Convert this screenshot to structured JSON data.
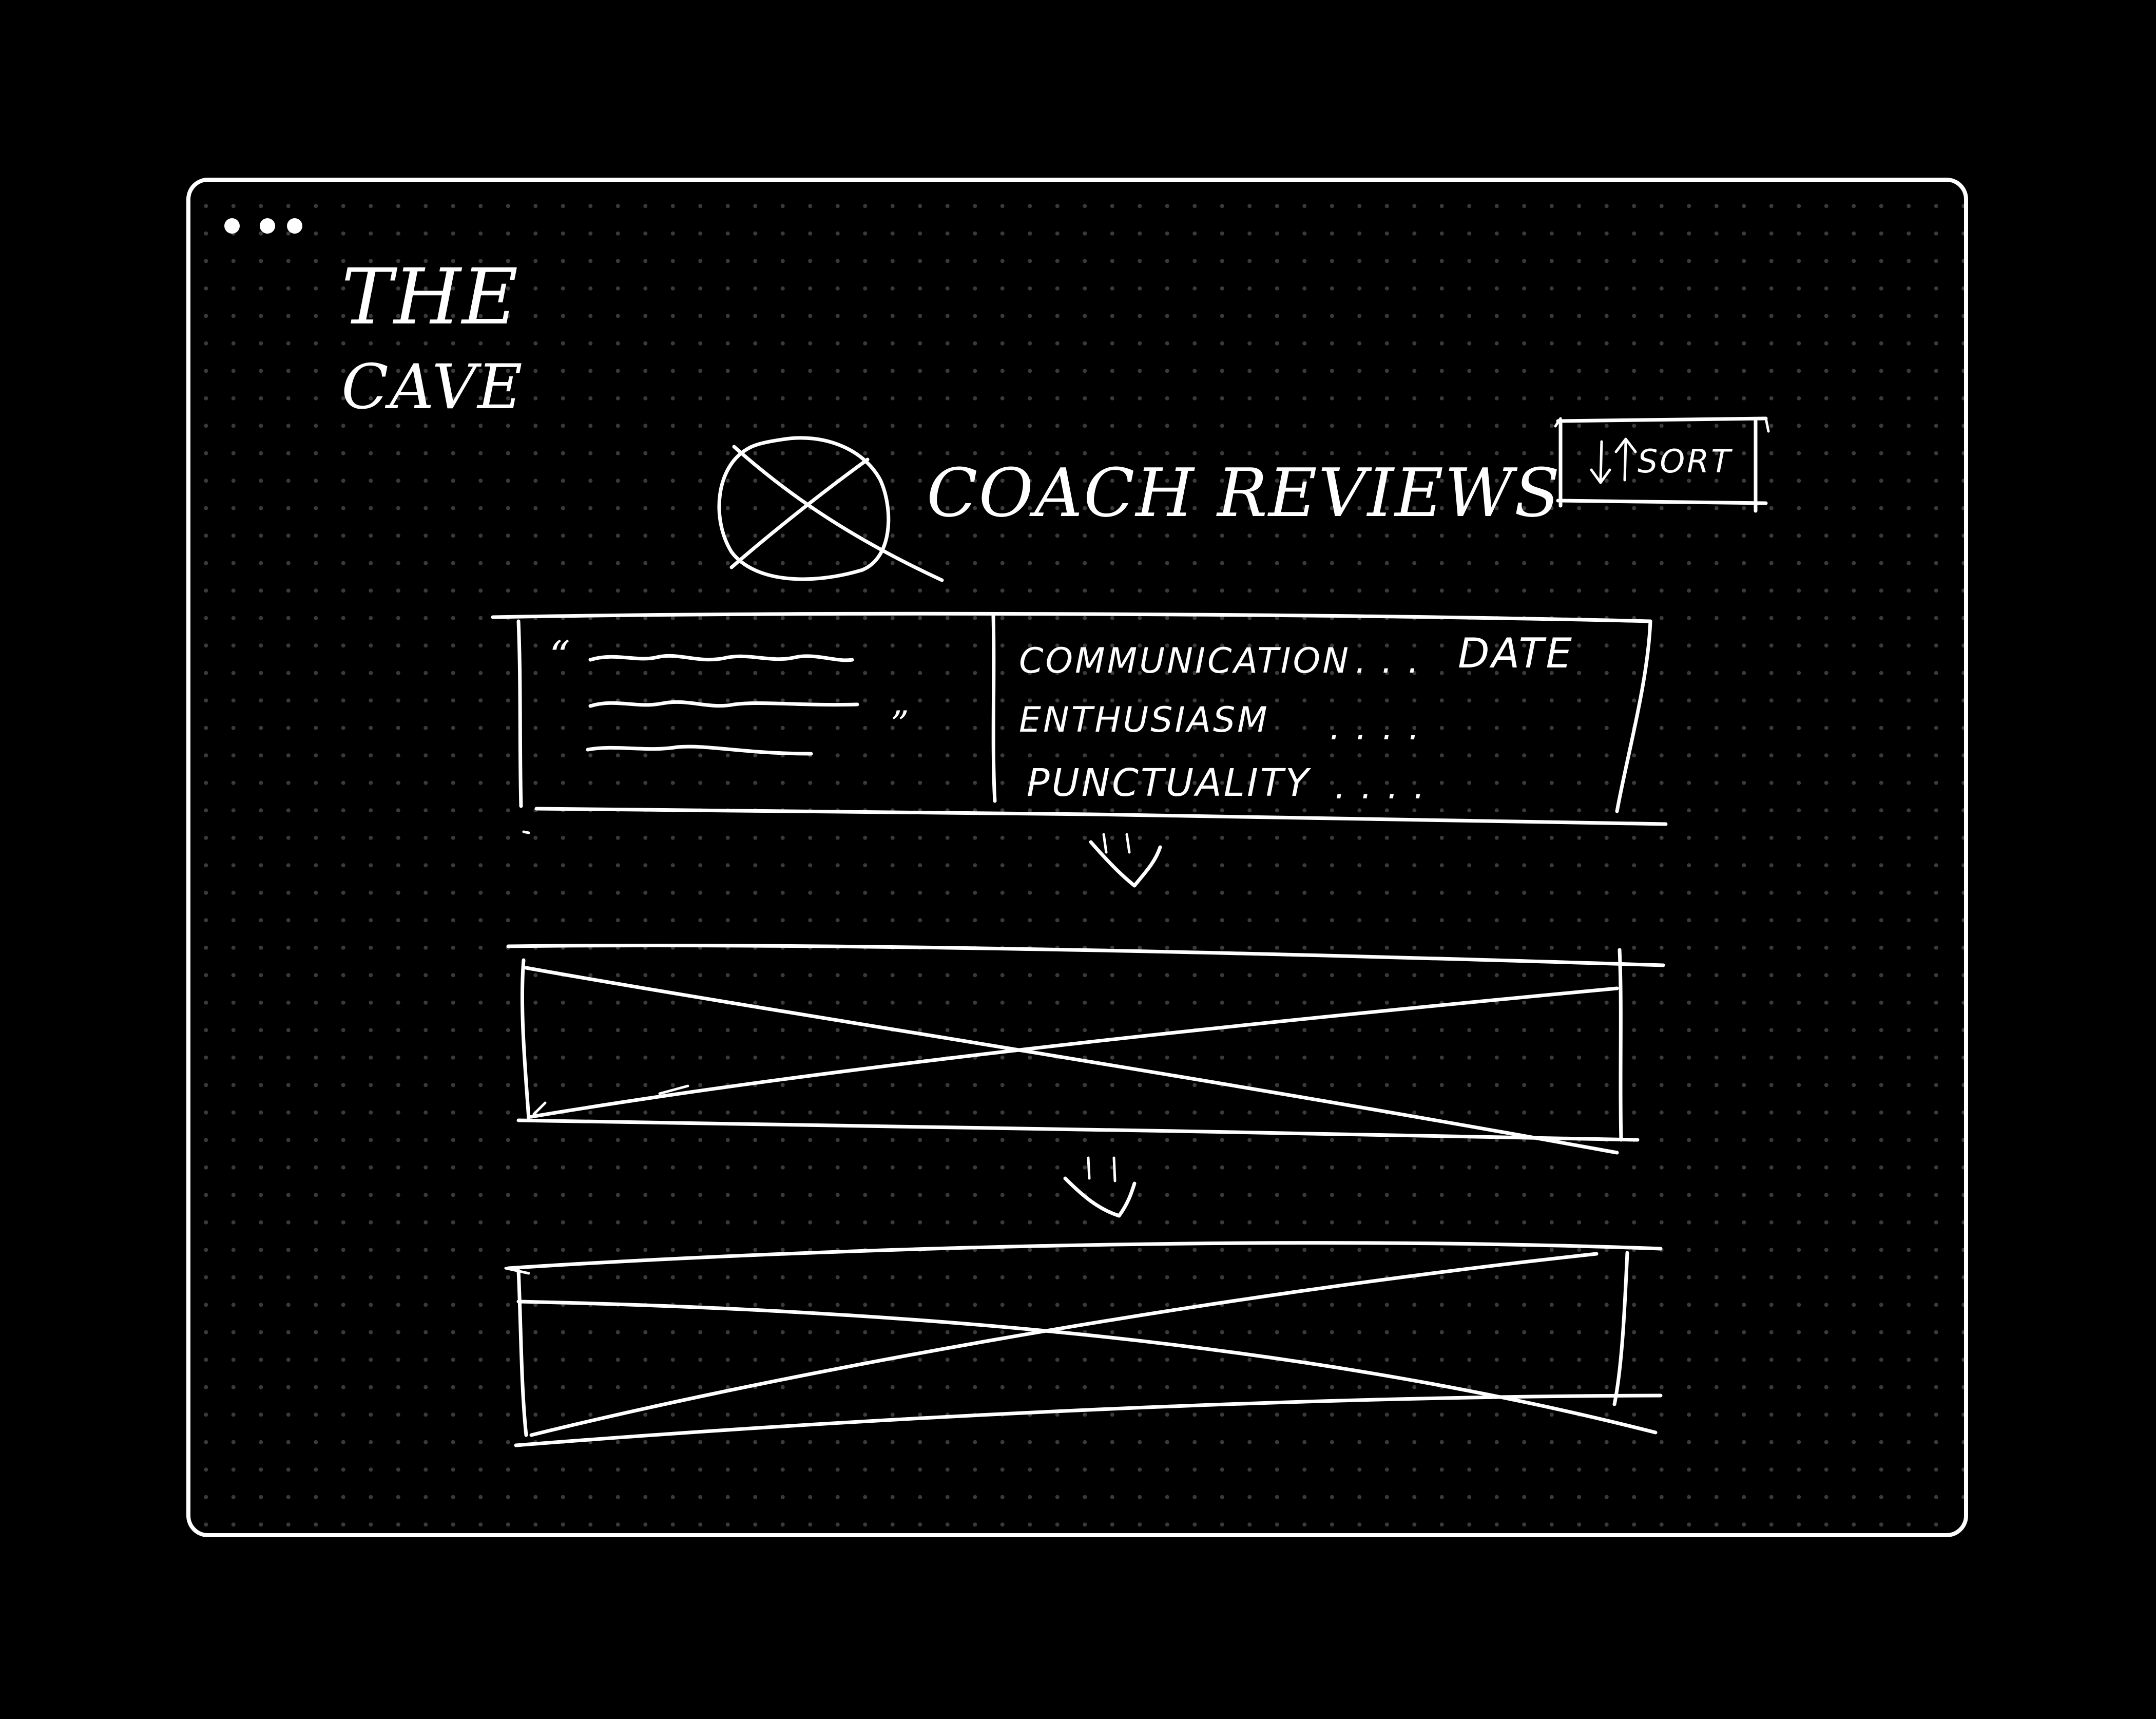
{
  "app": {
    "title_line1": "THE",
    "title_line2": "CAVE"
  },
  "header": {
    "title": "COACH REVIEWS",
    "sort_button_label": "SORT",
    "sort_icon": "sort-arrows-icon",
    "coach_avatar": "image-placeholder-icon"
  },
  "reviews": {
    "first_card": {
      "opening_quote": "“",
      "closing_quote": "”",
      "ratings": [
        {
          "label": "COMMUNICATION",
          "dots": ". . ."
        },
        {
          "label": "ENTHUSIASM",
          "dots": ". . . ."
        },
        {
          "label": "PUNCTUALITY",
          "dots": ". . . ."
        }
      ],
      "date_label": "DATE"
    },
    "placeholder_cards": 2,
    "scroll_indicator_icon": "scroll-down-icon"
  },
  "window": {
    "controls_icon": "window-dots-icon"
  },
  "colors": {
    "background": "#000000",
    "ink": "#ffffff",
    "grid_dot": "#3a3a3a"
  }
}
